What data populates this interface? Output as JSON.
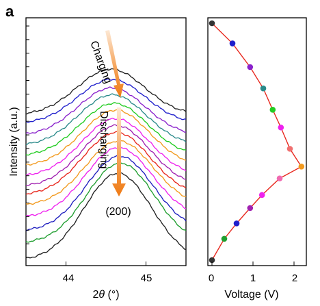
{
  "panel_label": "a",
  "colors": {
    "axes": "#000000",
    "fit_curve": "#e8281e",
    "arrow_orange": "#f07d1a",
    "arrow_light": "#fde3cc"
  },
  "chart_data": [
    {
      "type": "line",
      "title": "",
      "xlabel_prefix": "2",
      "xlabel_theta": "θ",
      "xlabel_suffix": " (°)",
      "ylabel": "Intensity (a.u.)",
      "xlim": [
        43.5,
        45.5
      ],
      "ylim": [
        0,
        14.5
      ],
      "x_ticks": [
        44,
        45
      ],
      "x_tick_labels": [
        "44",
        "45"
      ],
      "y_ticks_count": 18,
      "peak_center": 44.65,
      "annotations": {
        "charging": "Charging",
        "discharging": "Discharging",
        "peak_index": "(200)"
      },
      "series": [
        {
          "color": "#222222",
          "values_bottom": 0.3,
          "values_top": 5.4,
          "peak_x": 44.65
        },
        {
          "color": "#1f9e2f",
          "values_bottom": 1.3,
          "values_top": 6.0,
          "peak_x": 44.68
        },
        {
          "color": "#1f1fbf",
          "values_bottom": 2.0,
          "values_top": 6.4,
          "peak_x": 44.67
        },
        {
          "color": "#ee22ee",
          "values_bottom": 2.8,
          "values_top": 6.9,
          "peak_x": 44.66
        },
        {
          "color": "#f29a1e",
          "values_bottom": 3.5,
          "values_top": 7.3,
          "peak_x": 44.66
        },
        {
          "color": "#e8281e",
          "values_bottom": 4.1,
          "values_top": 7.8,
          "peak_x": 44.63
        },
        {
          "color": "#a020b0",
          "values_bottom": 4.6,
          "values_top": 8.2,
          "peak_x": 44.63
        },
        {
          "color": "#ee22ee",
          "values_bottom": 5.2,
          "values_top": 8.6,
          "peak_x": 44.62
        },
        {
          "color": "#f29a1e",
          "values_bottom": 5.8,
          "values_top": 9.1,
          "peak_x": 44.62
        },
        {
          "color": "#22cc22",
          "values_bottom": 6.4,
          "values_top": 9.5,
          "peak_x": 44.6
        },
        {
          "color": "#2a8a8a",
          "values_bottom": 7.0,
          "values_top": 10.0,
          "peak_x": 44.58
        },
        {
          "color": "#8a22cc",
          "values_bottom": 7.6,
          "values_top": 10.4,
          "peak_x": 44.57
        },
        {
          "color": "#1f1fcc",
          "values_bottom": 8.3,
          "values_top": 10.9,
          "peak_x": 44.57
        },
        {
          "color": "#222222",
          "values_bottom": 8.8,
          "values_top": 11.5,
          "peak_x": 44.56
        }
      ]
    },
    {
      "type": "scatter",
      "title": "",
      "xlabel": "Voltage (V)",
      "ylabel": "",
      "xlim": [
        -0.1,
        2.3
      ],
      "ylim": [
        0,
        1
      ],
      "x_ticks": [
        0,
        1,
        2
      ],
      "x_tick_labels": [
        "0",
        "1",
        "2"
      ],
      "fit_curve": true,
      "points": [
        {
          "x": 0.0,
          "y": 1.0,
          "color": "#333333"
        },
        {
          "x": 0.5,
          "y": 0.915,
          "color": "#1f1fcc"
        },
        {
          "x": 0.93,
          "y": 0.815,
          "color": "#8a22cc"
        },
        {
          "x": 1.25,
          "y": 0.725,
          "color": "#2a8a8a"
        },
        {
          "x": 1.48,
          "y": 0.635,
          "color": "#22cc22"
        },
        {
          "x": 1.68,
          "y": 0.56,
          "color": "#ee22ee"
        },
        {
          "x": 1.9,
          "y": 0.47,
          "color": "#f07070"
        },
        {
          "x": 2.18,
          "y": 0.395,
          "color": "#f29a1e"
        },
        {
          "x": 1.65,
          "y": 0.345,
          "color": "#f06ab0"
        },
        {
          "x": 1.22,
          "y": 0.275,
          "color": "#ee22ee"
        },
        {
          "x": 0.93,
          "y": 0.22,
          "color": "#a020b0"
        },
        {
          "x": 0.6,
          "y": 0.155,
          "color": "#1f1fcc"
        },
        {
          "x": 0.3,
          "y": 0.09,
          "color": "#1f9e2f"
        },
        {
          "x": 0.0,
          "y": 0.0,
          "color": "#333333"
        }
      ]
    }
  ]
}
